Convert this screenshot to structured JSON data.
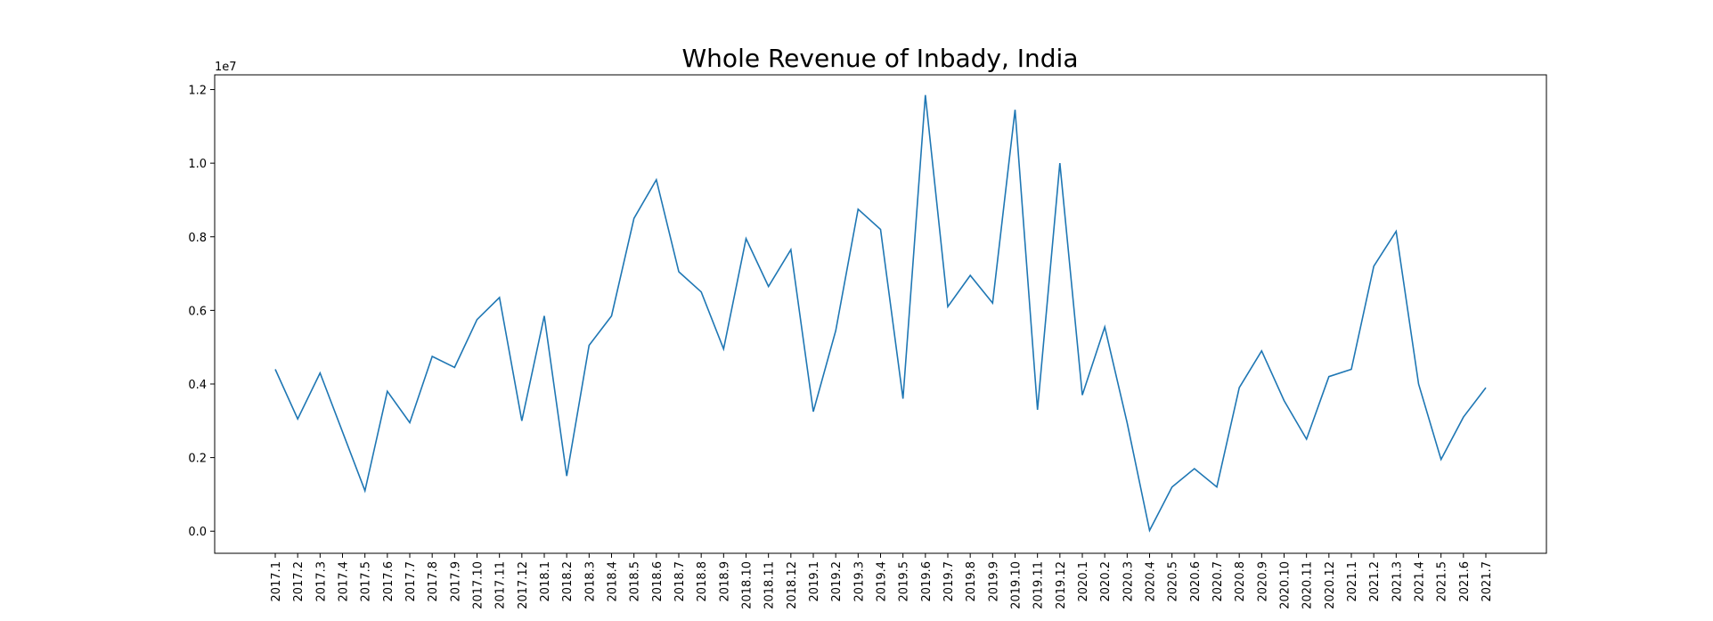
{
  "chart_data": {
    "type": "line",
    "title": "Whole Revenue of Inbady, India",
    "xlabel": "",
    "ylabel": "",
    "y_offset_label": "1e7",
    "ylim": [
      -0.6,
      12.4
    ],
    "y_ticks": [
      0.0,
      0.2,
      0.4,
      0.6,
      0.8,
      1.0,
      1.2
    ],
    "y_tick_labels": [
      "0.0",
      "0.2",
      "0.4",
      "0.6",
      "0.8",
      "1.0",
      "1.2"
    ],
    "y_scale_note": "values in units of 1e7",
    "grid": false,
    "line_color": "#1f77b4",
    "categories": [
      "2017.1",
      "2017.2",
      "2017.3",
      "2017.4",
      "2017.5",
      "2017.6",
      "2017.7",
      "2017.8",
      "2017.9",
      "2017.10",
      "2017.11",
      "2017.12",
      "2018.1",
      "2018.2",
      "2018.3",
      "2018.4",
      "2018.5",
      "2018.6",
      "2018.7",
      "2018.8",
      "2018.9",
      "2018.10",
      "2018.11",
      "2018.12",
      "2019.1",
      "2019.2",
      "2019.3",
      "2019.4",
      "2019.5",
      "2019.6",
      "2019.7",
      "2019.8",
      "2019.9",
      "2019.10",
      "2019.11",
      "2019.12",
      "2020.1",
      "2020.2",
      "2020.3",
      "2020.4",
      "2020.5",
      "2020.6",
      "2020.7",
      "2020.8",
      "2020.9",
      "2020.10",
      "2020.11",
      "2020.12",
      "2021.1",
      "2021.2",
      "2021.3",
      "2021.4",
      "2021.5",
      "2021.6",
      "2021.7"
    ],
    "values": [
      4.4,
      3.05,
      4.3,
      2.7,
      1.1,
      3.8,
      2.95,
      4.75,
      4.45,
      5.75,
      6.35,
      3.0,
      5.85,
      1.5,
      5.05,
      5.85,
      8.5,
      9.55,
      7.05,
      6.5,
      4.95,
      7.95,
      6.65,
      7.65,
      3.25,
      5.45,
      8.75,
      8.2,
      3.6,
      11.85,
      6.1,
      6.95,
      6.2,
      11.45,
      3.3,
      10.0,
      3.7,
      5.55,
      2.95,
      0.02,
      1.2,
      1.7,
      1.2,
      3.9,
      4.9,
      3.55,
      2.5,
      4.2,
      4.4,
      7.2,
      8.15,
      4.0,
      1.95,
      3.1,
      3.9
    ]
  }
}
